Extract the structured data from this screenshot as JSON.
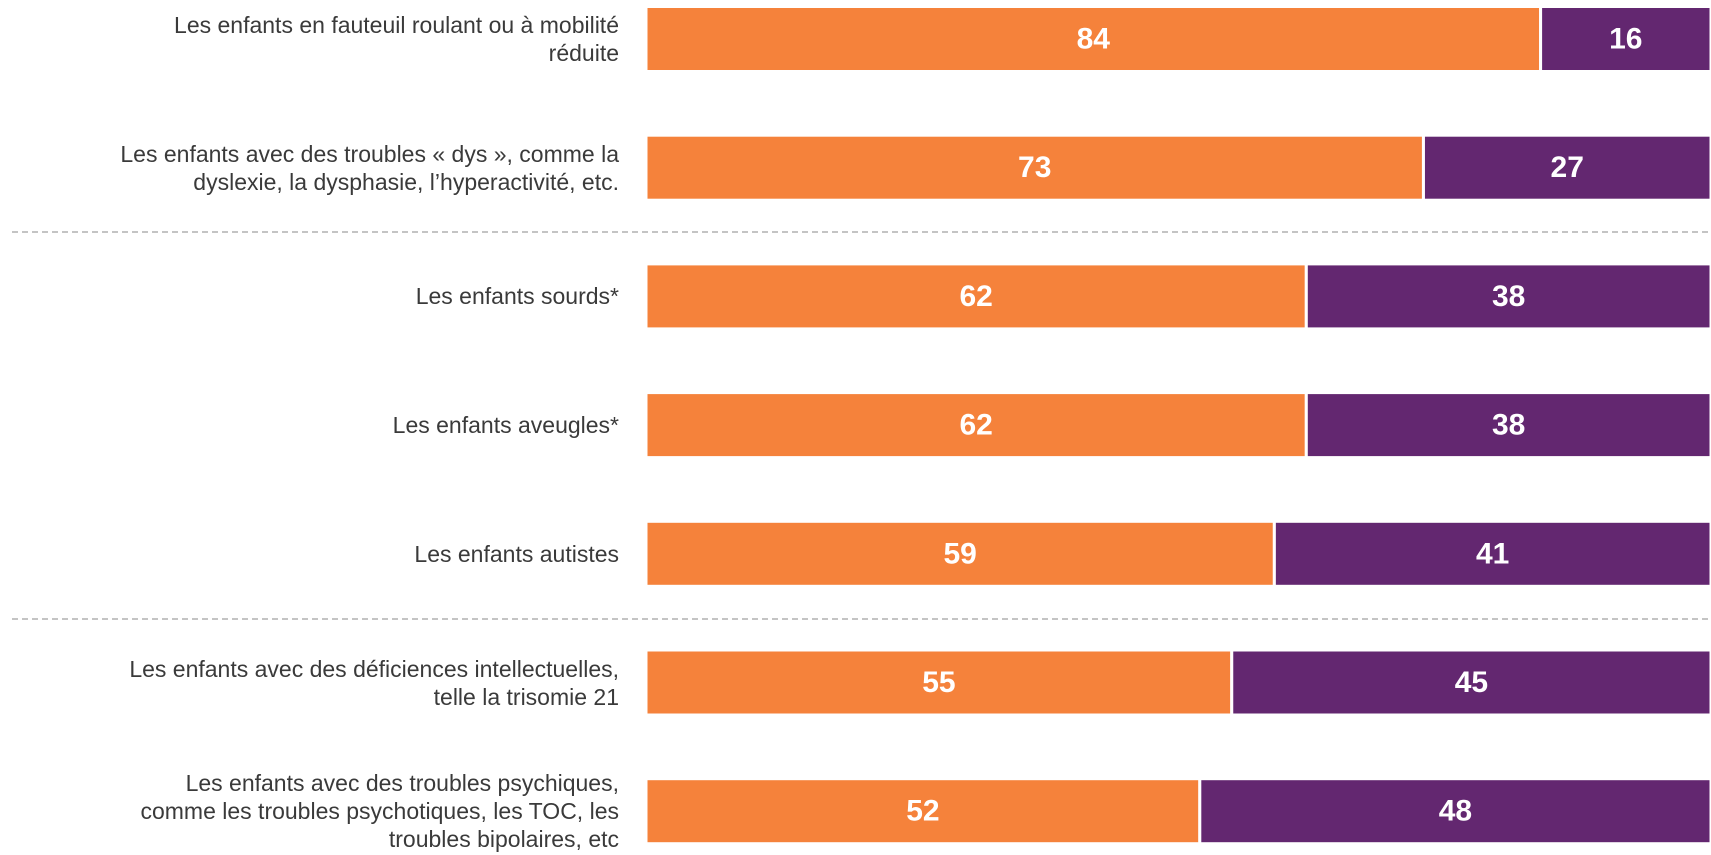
{
  "chart_data": {
    "type": "stacked-barh",
    "categories": [
      "Les enfants en fauteuil roulant ou à mobilité\nréduite",
      "Les enfants avec des troubles « dys », comme la\ndyslexie, la dysphasie, l’hyperactivité, etc.",
      "Les enfants sourds*",
      "Les enfants aveugles*",
      "Les enfants autistes",
      "Les enfants avec des déficiences intellectuelles,\ntelle la trisomie 21",
      "Les enfants avec des troubles psychiques,\ncomme les troubles psychotiques, les TOC, les\ntroubles bipolaires, etc"
    ],
    "series": [
      {
        "color": "#F5823B",
        "values": [
          84,
          73,
          62,
          62,
          59,
          55,
          52
        ]
      },
      {
        "color": "#632770",
        "values": [
          16,
          27,
          38,
          38,
          41,
          45,
          48
        ]
      }
    ],
    "xlim": [
      0,
      100
    ]
  }
}
